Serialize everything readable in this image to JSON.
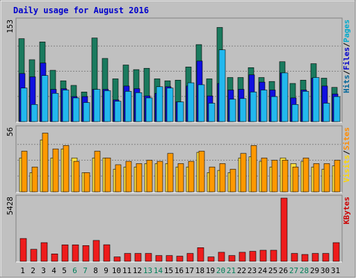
{
  "chart_data": {
    "type": "bar",
    "title": "Daily usage for August 2016",
    "days": [
      "1",
      "2",
      "3",
      "4",
      "5",
      "6",
      "7",
      "8",
      "9",
      "10",
      "11",
      "12",
      "13",
      "14",
      "15",
      "16",
      "17",
      "18",
      "19",
      "20",
      "21",
      "22",
      "23",
      "24",
      "25",
      "26",
      "27",
      "28",
      "29",
      "30",
      "31"
    ],
    "weekend_days": [
      "6",
      "7",
      "13",
      "14",
      "20",
      "21",
      "27",
      "28"
    ],
    "panels": [
      {
        "id": "hits",
        "ymax_label": "153",
        "ymax": 153,
        "ylim": [
          0,
          153
        ],
        "right_labels": [
          {
            "text": "Hits",
            "color": "#006699"
          },
          {
            "text": "/",
            "color": "#000000"
          },
          {
            "text": "Files",
            "color": "#0000cc"
          },
          {
            "text": "/",
            "color": "#000000"
          },
          {
            "text": "Pages",
            "color": "#00aacc"
          }
        ],
        "series": [
          {
            "name": "Hits",
            "color": "#1a7a5e",
            "values": [
              126,
              94,
              121,
              78,
              62,
              55,
              45,
              127,
              96,
              65,
              86,
              79,
              81,
              65,
              62,
              63,
              83,
              117,
              65,
              143,
              67,
              67,
              82,
              67,
              61,
              91,
              58,
              63,
              88,
              66,
              52
            ]
          },
          {
            "name": "Files",
            "color": "#1010e0",
            "values": [
              73,
              68,
              89,
              49,
              50,
              38,
              38,
              49,
              49,
              33,
              54,
              50,
              39,
              43,
              53,
              30,
              54,
              92,
              39,
              58,
              48,
              49,
              71,
              60,
              48,
              74,
              36,
              48,
              66,
              54,
              42
            ]
          },
          {
            "name": "Pages",
            "color": "#22b8ee",
            "values": [
              51,
              26,
              70,
              43,
              48,
              36,
              29,
              49,
              47,
              31,
              46,
              44,
              36,
              53,
              51,
              30,
              59,
              56,
              28,
              109,
              34,
              35,
              45,
              48,
              38,
              74,
              26,
              46,
              67,
              28,
              38
            ]
          }
        ]
      },
      {
        "id": "visits",
        "ymax_label": "56",
        "ymax": 56,
        "ylim": [
          0,
          56
        ],
        "right_labels": [
          {
            "text": "Visits",
            "color": "#ffd700"
          },
          {
            "text": "/",
            "color": "#000000"
          },
          {
            "text": "Sites",
            "color": "#ff8c00"
          }
        ],
        "series": [
          {
            "name": "Visits",
            "color": "#ffe040",
            "values": [
              30,
              17,
              46,
              30,
              38,
              30,
              17,
              30,
              30,
              20,
              22,
              22,
              25,
              25,
              25,
              22,
              22,
              35,
              17,
              19,
              17,
              30,
              31,
              27,
              22,
              30,
              25,
              27,
              22,
              20,
              23
            ]
          },
          {
            "name": "Sites",
            "color": "#ff9900",
            "values": [
              36,
              22,
              52,
              38,
              41,
              27,
              17,
              36,
              30,
              24,
              27,
              25,
              28,
              27,
              34,
              25,
              27,
              36,
              22,
              25,
              20,
              34,
              41,
              30,
              28,
              28,
              22,
              30,
              25,
              25,
              28
            ]
          }
        ]
      },
      {
        "id": "kbytes",
        "ymax_label": "5428",
        "ymax": 5428,
        "ylim": [
          0,
          5428
        ],
        "right_labels": [
          {
            "text": "KBytes",
            "color": "#cc0000"
          }
        ],
        "series": [
          {
            "name": "KBytes",
            "color": "#ee1c1c",
            "values": [
              1963,
              1032,
              1606,
              639,
              1417,
              1417,
              1355,
              1794,
              1425,
              382,
              681,
              681,
              681,
              499,
              499,
              445,
              681,
              1175,
              382,
              779,
              499,
              779,
              862,
              954,
              954,
              5428,
              681,
              593,
              681,
              681,
              1606
            ]
          }
        ]
      }
    ]
  }
}
